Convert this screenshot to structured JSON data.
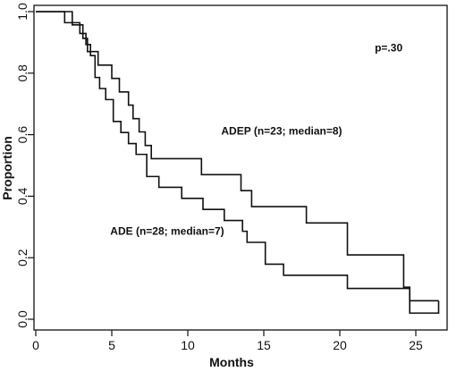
{
  "chart_data": {
    "type": "line",
    "step": true,
    "xlabel": "Months",
    "ylabel": "Proportion",
    "xlim": [
      0,
      27
    ],
    "ylim": [
      0,
      1.05
    ],
    "xticks": [
      "0",
      "5",
      "10",
      "15",
      "20",
      "25"
    ],
    "yticks": [
      "0.0",
      "0.2",
      "0.4",
      "0.6",
      "0.8",
      "1.0"
    ],
    "grid": false,
    "legend": "none",
    "annotations": [
      {
        "text": "p=.30",
        "x": 22.3,
        "y": 0.87
      },
      {
        "text": "ADEP (n=23; median=8)",
        "x": 12.2,
        "y": 0.6
      },
      {
        "text": "ADE (n=28; median=7)",
        "x": 4.9,
        "y": 0.275
      }
    ],
    "series": [
      {
        "label": "ADEP (n=23; median=8)",
        "x": [
          0,
          2.4,
          3.1,
          3.4,
          4.1,
          5.0,
          5.5,
          6.1,
          6.4,
          6.8,
          7.2,
          7.6,
          8.2,
          10.9,
          13.5,
          14.2,
          17.8,
          20.5,
          24.2,
          24.6,
          26.5
        ],
        "y": [
          1.0,
          0.957,
          0.913,
          0.87,
          0.826,
          0.783,
          0.739,
          0.696,
          0.652,
          0.609,
          0.565,
          0.522,
          0.522,
          0.47,
          0.418,
          0.366,
          0.313,
          0.209,
          0.104,
          0.06,
          0.06
        ]
      },
      {
        "label": "ADE (n=28; median=7)",
        "x": [
          0,
          1.9,
          2.9,
          3.3,
          3.6,
          3.9,
          4.2,
          4.6,
          5.1,
          5.6,
          6.1,
          6.6,
          7.3,
          8.1,
          9.6,
          11.0,
          12.4,
          13.6,
          13.9,
          15.1,
          16.3,
          20.5,
          24.4,
          24.6,
          26.5
        ],
        "y": [
          1.0,
          0.964,
          0.929,
          0.893,
          0.857,
          0.786,
          0.75,
          0.714,
          0.643,
          0.607,
          0.571,
          0.536,
          0.464,
          0.429,
          0.393,
          0.357,
          0.321,
          0.286,
          0.25,
          0.179,
          0.143,
          0.1,
          0.1,
          0.02,
          0.06
        ]
      }
    ]
  }
}
